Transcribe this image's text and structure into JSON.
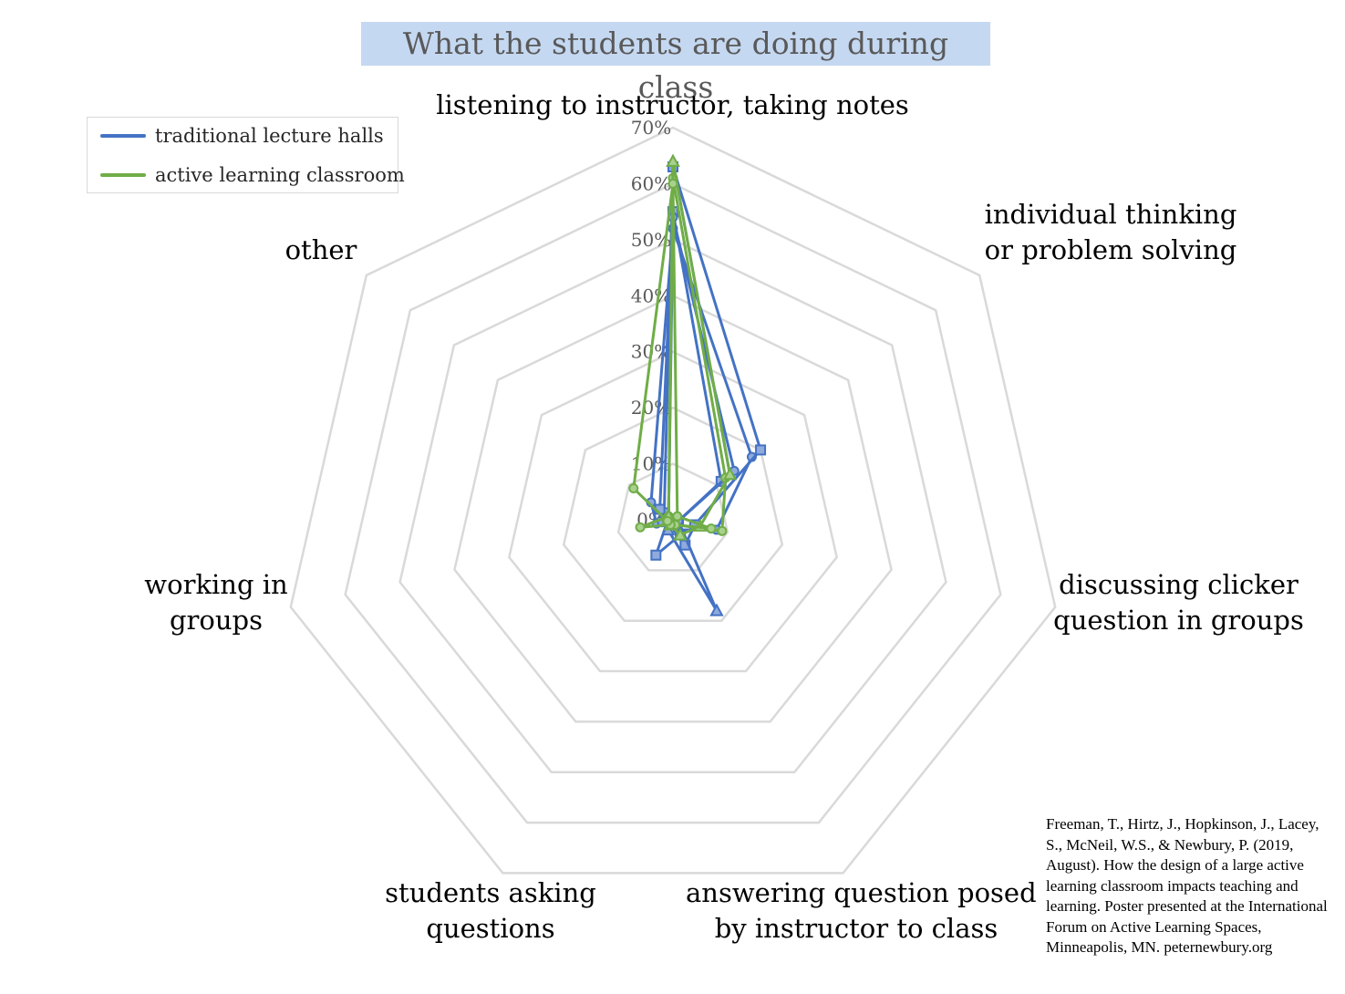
{
  "title": "What the students are doing during class",
  "legend": {
    "items": [
      {
        "label": "traditional lecture halls",
        "color": "#4472c4"
      },
      {
        "label": "active learning classroom",
        "color": "#70ad47"
      }
    ]
  },
  "citation": "Freeman, T., Hirtz, J., Hopkinson, J., Lacey, S., McNeil, W.S., & Newbury, P. (2019, August). How the design of a large active learning classroom impacts teaching and learning. Poster presented at the International Forum on Active Learning Spaces, Minneapolis, MN. peternewbury.org",
  "chart_data": {
    "type": "radar",
    "title": "What the students are doing during class",
    "axes": [
      [
        "listening to instructor, taking notes"
      ],
      [
        "individual thinking",
        "or problem solving"
      ],
      [
        "discussing clicker",
        "question in groups"
      ],
      [
        "answering question posed",
        "by instructor to class"
      ],
      [
        "students asking",
        "questions"
      ],
      [
        "working in",
        "groups"
      ],
      [
        "other"
      ]
    ],
    "radial_ticks": [
      "0%",
      "10%",
      "20%",
      "30%",
      "40%",
      "50%",
      "60%",
      "70%"
    ],
    "rlim": [
      0,
      0.7
    ],
    "grid": true,
    "legend_position": "top-left",
    "series": [
      {
        "name": "traditional lecture halls",
        "color": "#4472c4",
        "marker": "circle",
        "values": [
          0.52,
          0.18,
          0.08,
          0.02,
          0.01,
          0.03,
          0.05
        ]
      },
      {
        "name": "traditional lecture halls",
        "color": "#4472c4",
        "marker": "square",
        "values": [
          0.63,
          0.2,
          0.04,
          0.05,
          0.01,
          0.01,
          0.02
        ]
      },
      {
        "name": "traditional lecture halls",
        "color": "#4472c4",
        "marker": "square",
        "values": [
          0.55,
          0.11,
          0.01,
          0.03,
          0.07,
          0.01,
          0.03
        ]
      },
      {
        "name": "traditional lecture halls",
        "color": "#4472c4",
        "marker": "triangle",
        "values": [
          0.64,
          0.13,
          0.01,
          0.18,
          0.02,
          0.01,
          0.01
        ]
      },
      {
        "name": "traditional lecture halls",
        "color": "#4472c4",
        "marker": "circle",
        "values": [
          0.54,
          0.14,
          0.01,
          0.01,
          0.01,
          0.02,
          0.01
        ]
      },
      {
        "name": "active learning classroom",
        "color": "#70ad47",
        "marker": "circle",
        "values": [
          0.61,
          0.12,
          0.09,
          0.01,
          0.01,
          0.06,
          0.01
        ]
      },
      {
        "name": "active learning classroom",
        "color": "#70ad47",
        "marker": "triangle",
        "values": [
          0.64,
          0.13,
          0.05,
          0.03,
          0.01,
          0.01,
          0.01
        ]
      },
      {
        "name": "active learning classroom",
        "color": "#70ad47",
        "marker": "circle",
        "values": [
          0.6,
          0.01,
          0.07,
          0.01,
          0.01,
          0.01,
          0.09
        ]
      }
    ]
  }
}
